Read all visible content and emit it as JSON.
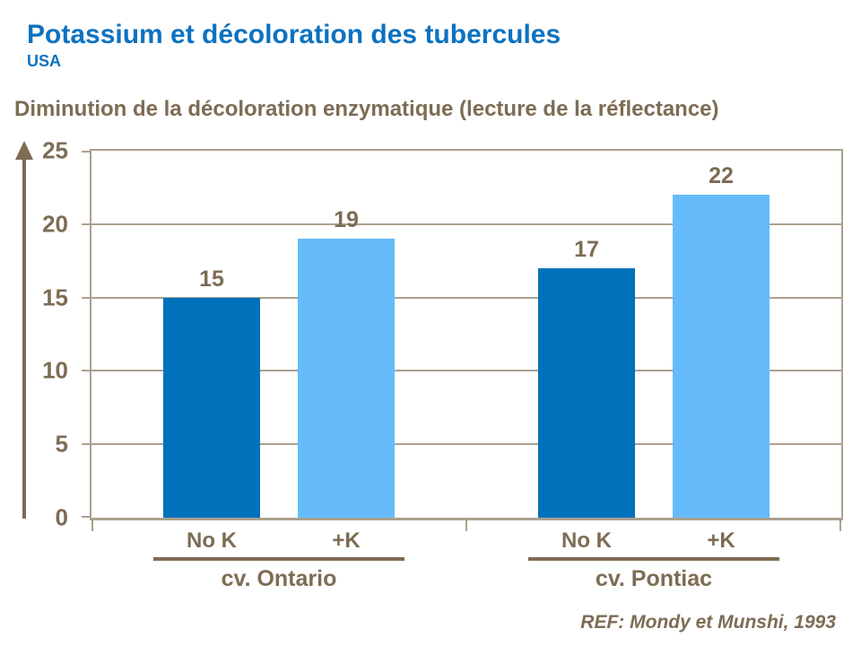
{
  "slide": {
    "title": "Potassium et décoloration des tubercules",
    "region": "USA",
    "heading": "Diminution de la décoloration enzymatique (lecture de la réflectance)",
    "reference": "REF: Mondy et Munshi, 1993"
  },
  "colors": {
    "title_blue": "#0d72c0",
    "text_brown": "#7d6c54",
    "axis_tan": "#aca18f",
    "bar_dark_blue": "#0072bc",
    "bar_light_blue": "#66bcfb"
  },
  "chart_data": {
    "type": "bar",
    "title": "Diminution de la décoloration enzymatique (lecture de la réflectance)",
    "xlabel": "",
    "ylabel": "",
    "ylim": [
      0,
      25
    ],
    "yticks": [
      0,
      5,
      10,
      15,
      20,
      25
    ],
    "grid": true,
    "legend": "none",
    "bar_colors": {
      "dark": "#0072bc",
      "light": "#66bcfb"
    },
    "groups": [
      {
        "label": "cv. Ontario",
        "bars": [
          {
            "category": "No K",
            "value": 15,
            "color_key": "dark"
          },
          {
            "category": "+K",
            "value": 19,
            "color_key": "light"
          }
        ]
      },
      {
        "label": "cv. Pontiac",
        "bars": [
          {
            "category": "No K",
            "value": 17,
            "color_key": "dark"
          },
          {
            "category": "+K",
            "value": 22,
            "color_key": "light"
          }
        ]
      }
    ]
  }
}
